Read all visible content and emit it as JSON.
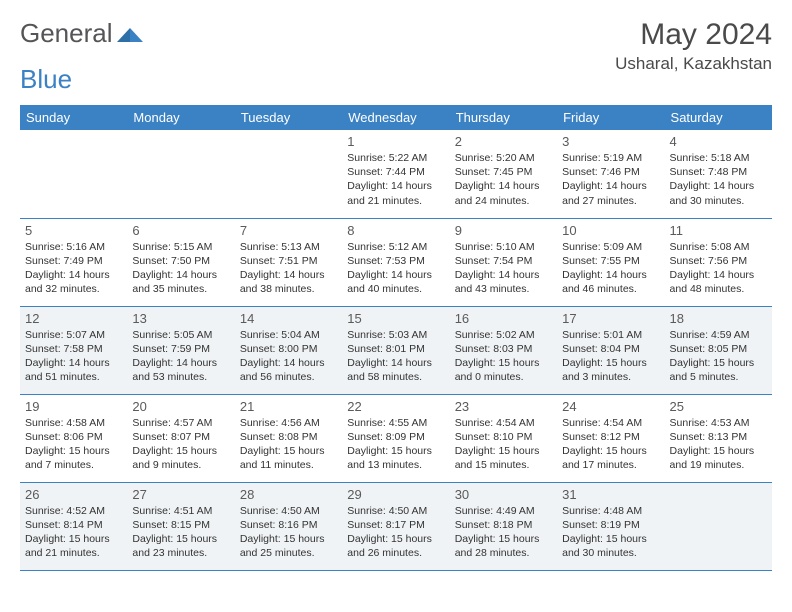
{
  "logo": {
    "part1": "General",
    "part2": "Blue"
  },
  "title": "May 2024",
  "location": "Usharal, Kazakhstan",
  "colors": {
    "header_bg": "#3b82c4",
    "header_text": "#ffffff",
    "shade_bg": "#f0f3f5",
    "border": "#3b82c4",
    "text": "#333333",
    "title_text": "#4a4a4a"
  },
  "weekdays": [
    "Sunday",
    "Monday",
    "Tuesday",
    "Wednesday",
    "Thursday",
    "Friday",
    "Saturday"
  ],
  "weeks": [
    [
      {
        "shade": false
      },
      {
        "shade": false
      },
      {
        "shade": false
      },
      {
        "day": "1",
        "sunrise": "5:22 AM",
        "sunset": "7:44 PM",
        "daylight": "14 hours and 21 minutes.",
        "shade": false
      },
      {
        "day": "2",
        "sunrise": "5:20 AM",
        "sunset": "7:45 PM",
        "daylight": "14 hours and 24 minutes.",
        "shade": false
      },
      {
        "day": "3",
        "sunrise": "5:19 AM",
        "sunset": "7:46 PM",
        "daylight": "14 hours and 27 minutes.",
        "shade": false
      },
      {
        "day": "4",
        "sunrise": "5:18 AM",
        "sunset": "7:48 PM",
        "daylight": "14 hours and 30 minutes.",
        "shade": false
      }
    ],
    [
      {
        "day": "5",
        "sunrise": "5:16 AM",
        "sunset": "7:49 PM",
        "daylight": "14 hours and 32 minutes.",
        "shade": false
      },
      {
        "day": "6",
        "sunrise": "5:15 AM",
        "sunset": "7:50 PM",
        "daylight": "14 hours and 35 minutes.",
        "shade": false
      },
      {
        "day": "7",
        "sunrise": "5:13 AM",
        "sunset": "7:51 PM",
        "daylight": "14 hours and 38 minutes.",
        "shade": false
      },
      {
        "day": "8",
        "sunrise": "5:12 AM",
        "sunset": "7:53 PM",
        "daylight": "14 hours and 40 minutes.",
        "shade": false
      },
      {
        "day": "9",
        "sunrise": "5:10 AM",
        "sunset": "7:54 PM",
        "daylight": "14 hours and 43 minutes.",
        "shade": false
      },
      {
        "day": "10",
        "sunrise": "5:09 AM",
        "sunset": "7:55 PM",
        "daylight": "14 hours and 46 minutes.",
        "shade": false
      },
      {
        "day": "11",
        "sunrise": "5:08 AM",
        "sunset": "7:56 PM",
        "daylight": "14 hours and 48 minutes.",
        "shade": false
      }
    ],
    [
      {
        "day": "12",
        "sunrise": "5:07 AM",
        "sunset": "7:58 PM",
        "daylight": "14 hours and 51 minutes.",
        "shade": true
      },
      {
        "day": "13",
        "sunrise": "5:05 AM",
        "sunset": "7:59 PM",
        "daylight": "14 hours and 53 minutes.",
        "shade": true
      },
      {
        "day": "14",
        "sunrise": "5:04 AM",
        "sunset": "8:00 PM",
        "daylight": "14 hours and 56 minutes.",
        "shade": true
      },
      {
        "day": "15",
        "sunrise": "5:03 AM",
        "sunset": "8:01 PM",
        "daylight": "14 hours and 58 minutes.",
        "shade": true
      },
      {
        "day": "16",
        "sunrise": "5:02 AM",
        "sunset": "8:03 PM",
        "daylight": "15 hours and 0 minutes.",
        "shade": true
      },
      {
        "day": "17",
        "sunrise": "5:01 AM",
        "sunset": "8:04 PM",
        "daylight": "15 hours and 3 minutes.",
        "shade": true
      },
      {
        "day": "18",
        "sunrise": "4:59 AM",
        "sunset": "8:05 PM",
        "daylight": "15 hours and 5 minutes.",
        "shade": true
      }
    ],
    [
      {
        "day": "19",
        "sunrise": "4:58 AM",
        "sunset": "8:06 PM",
        "daylight": "15 hours and 7 minutes.",
        "shade": false
      },
      {
        "day": "20",
        "sunrise": "4:57 AM",
        "sunset": "8:07 PM",
        "daylight": "15 hours and 9 minutes.",
        "shade": false
      },
      {
        "day": "21",
        "sunrise": "4:56 AM",
        "sunset": "8:08 PM",
        "daylight": "15 hours and 11 minutes.",
        "shade": false
      },
      {
        "day": "22",
        "sunrise": "4:55 AM",
        "sunset": "8:09 PM",
        "daylight": "15 hours and 13 minutes.",
        "shade": false
      },
      {
        "day": "23",
        "sunrise": "4:54 AM",
        "sunset": "8:10 PM",
        "daylight": "15 hours and 15 minutes.",
        "shade": false
      },
      {
        "day": "24",
        "sunrise": "4:54 AM",
        "sunset": "8:12 PM",
        "daylight": "15 hours and 17 minutes.",
        "shade": false
      },
      {
        "day": "25",
        "sunrise": "4:53 AM",
        "sunset": "8:13 PM",
        "daylight": "15 hours and 19 minutes.",
        "shade": false
      }
    ],
    [
      {
        "day": "26",
        "sunrise": "4:52 AM",
        "sunset": "8:14 PM",
        "daylight": "15 hours and 21 minutes.",
        "shade": true
      },
      {
        "day": "27",
        "sunrise": "4:51 AM",
        "sunset": "8:15 PM",
        "daylight": "15 hours and 23 minutes.",
        "shade": true
      },
      {
        "day": "28",
        "sunrise": "4:50 AM",
        "sunset": "8:16 PM",
        "daylight": "15 hours and 25 minutes.",
        "shade": true
      },
      {
        "day": "29",
        "sunrise": "4:50 AM",
        "sunset": "8:17 PM",
        "daylight": "15 hours and 26 minutes.",
        "shade": true
      },
      {
        "day": "30",
        "sunrise": "4:49 AM",
        "sunset": "8:18 PM",
        "daylight": "15 hours and 28 minutes.",
        "shade": true
      },
      {
        "day": "31",
        "sunrise": "4:48 AM",
        "sunset": "8:19 PM",
        "daylight": "15 hours and 30 minutes.",
        "shade": true
      },
      {
        "shade": true
      }
    ]
  ],
  "labels": {
    "sunrise": "Sunrise:",
    "sunset": "Sunset:",
    "daylight": "Daylight:"
  }
}
